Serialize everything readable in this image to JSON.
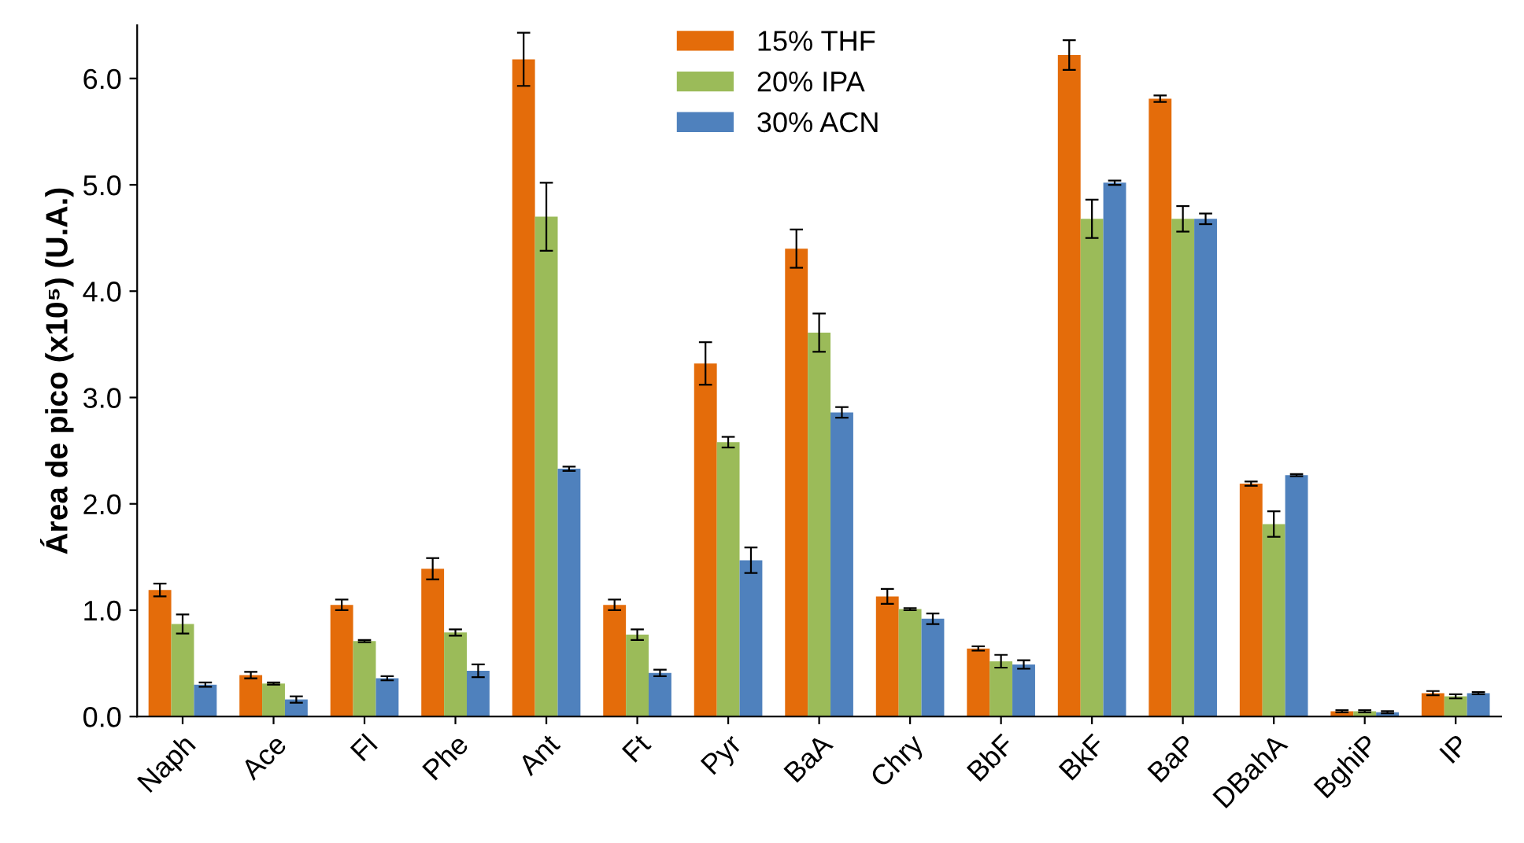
{
  "chart_data": {
    "type": "bar",
    "ylabel": "Área de pico (x10⁵) (U.A.)",
    "categories": [
      "Naph",
      "Ace",
      "Fl",
      "Phe",
      "Ant",
      "Ft",
      "Pyr",
      "BaA",
      "Chry",
      "BbF",
      "BkF",
      "BaP",
      "DBahA",
      "BghiP",
      "IP"
    ],
    "series": [
      {
        "name": "15% THF",
        "color": "#e46c0a",
        "values": [
          1.19,
          0.39,
          1.05,
          1.39,
          6.18,
          1.05,
          3.32,
          4.4,
          1.13,
          0.64,
          6.22,
          5.81,
          2.19,
          0.05,
          0.22
        ],
        "errors": [
          0.06,
          0.03,
          0.05,
          0.1,
          0.25,
          0.05,
          0.2,
          0.18,
          0.07,
          0.02,
          0.14,
          0.03,
          0.02,
          0.01,
          0.02
        ]
      },
      {
        "name": "20% IPA",
        "color": "#9bbb59",
        "values": [
          0.87,
          0.31,
          0.71,
          0.79,
          4.7,
          0.77,
          2.58,
          3.61,
          1.01,
          0.52,
          4.68,
          4.68,
          1.81,
          0.05,
          0.19
        ],
        "errors": [
          0.09,
          0.01,
          0.01,
          0.03,
          0.32,
          0.05,
          0.05,
          0.18,
          0.01,
          0.06,
          0.18,
          0.12,
          0.12,
          0.01,
          0.02
        ]
      },
      {
        "name": "30% ACN",
        "color": "#4f81bd",
        "values": [
          0.3,
          0.16,
          0.36,
          0.43,
          2.33,
          0.41,
          1.47,
          2.86,
          0.92,
          0.49,
          5.02,
          4.68,
          2.27,
          0.04,
          0.22
        ],
        "errors": [
          0.02,
          0.03,
          0.02,
          0.06,
          0.02,
          0.03,
          0.12,
          0.05,
          0.05,
          0.04,
          0.02,
          0.05,
          0.01,
          0.01,
          0.01
        ]
      }
    ],
    "ylim": [
      0,
      6.5
    ],
    "yticks": [
      {
        "value": 0,
        "label": "0.0"
      },
      {
        "value": 1,
        "label": "1.0"
      },
      {
        "value": 2,
        "label": "2.0"
      },
      {
        "value": 3,
        "label": "3.0"
      },
      {
        "value": 4,
        "label": "4.0"
      },
      {
        "value": 5,
        "label": "5.0"
      },
      {
        "value": 6,
        "label": "6.0"
      }
    ],
    "legend": "top",
    "grid": false
  }
}
